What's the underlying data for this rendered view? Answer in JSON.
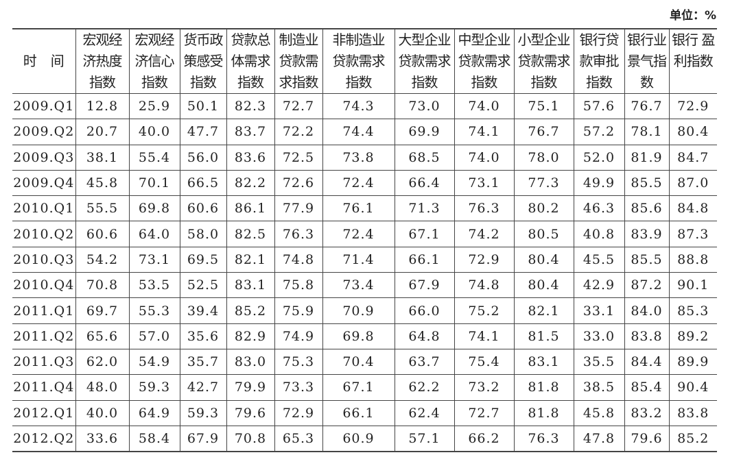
{
  "unit_label": "单位：%",
  "table": {
    "headers": [
      "时　间",
      "宏观经\n济热度\n指数",
      "宏观经\n济信心\n指数",
      "货币政\n策感受\n指数",
      "贷款总\n体需求\n指数",
      "制造业\n贷款需\n求指数",
      "非制造业\n贷款需求\n指数",
      "大型企业\n贷款需求\n指数",
      "中型企业\n贷款需求\n指数",
      "小型企业\n贷款需求\n指数",
      "银行贷\n款审批\n指数",
      "银行业\n景气指\n数",
      "银行 盈\n利指数"
    ],
    "rows": [
      [
        "2009.Q1",
        "12.8",
        "25.9",
        "50.1",
        "82.3",
        "72.7",
        "74.3",
        "73.0",
        "74.0",
        "75.1",
        "57.6",
        "76.7",
        "72.9"
      ],
      [
        "2009.Q2",
        "20.7",
        "40.0",
        "47.7",
        "83.7",
        "72.2",
        "74.4",
        "69.9",
        "74.1",
        "76.7",
        "57.2",
        "78.1",
        "80.4"
      ],
      [
        "2009.Q3",
        "38.1",
        "55.4",
        "56.0",
        "83.6",
        "72.5",
        "73.8",
        "68.5",
        "74.0",
        "78.0",
        "52.0",
        "81.9",
        "84.7"
      ],
      [
        "2009.Q4",
        "45.8",
        "70.1",
        "66.5",
        "82.2",
        "72.6",
        "72.4",
        "66.4",
        "73.1",
        "77.3",
        "49.9",
        "85.5",
        "87.0"
      ],
      [
        "2010.Q1",
        "55.5",
        "69.8",
        "60.6",
        "86.1",
        "77.9",
        "76.1",
        "71.3",
        "76.3",
        "80.2",
        "46.3",
        "85.6",
        "84.8"
      ],
      [
        "2010.Q2",
        "60.6",
        "64.0",
        "58.0",
        "82.5",
        "76.3",
        "72.4",
        "67.1",
        "74.2",
        "80.5",
        "40.8",
        "83.9",
        "87.3"
      ],
      [
        "2010.Q3",
        "54.2",
        "73.1",
        "69.5",
        "82.1",
        "74.8",
        "71.4",
        "66.1",
        "72.9",
        "80.4",
        "45.5",
        "85.5",
        "88.8"
      ],
      [
        "2010.Q4",
        "70.8",
        "53.5",
        "52.5",
        "83.1",
        "75.8",
        "73.4",
        "67.9",
        "74.8",
        "80.4",
        "42.9",
        "87.2",
        "90.1"
      ],
      [
        "2011.Q1",
        "69.7",
        "55.3",
        "39.4",
        "85.2",
        "75.9",
        "70.9",
        "66.0",
        "75.2",
        "82.1",
        "33.1",
        "84.0",
        "85.3"
      ],
      [
        "2011.Q2",
        "65.6",
        "57.0",
        "35.6",
        "82.9",
        "74.9",
        "69.8",
        "64.8",
        "74.1",
        "81.5",
        "33.0",
        "83.8",
        "89.2"
      ],
      [
        "2011.Q3",
        "62.0",
        "54.9",
        "35.7",
        "83.0",
        "75.3",
        "70.4",
        "63.7",
        "75.4",
        "83.1",
        "35.5",
        "84.4",
        "89.9"
      ],
      [
        "2011.Q4",
        "48.0",
        "59.3",
        "42.7",
        "79.9",
        "73.3",
        "67.1",
        "62.2",
        "73.2",
        "81.8",
        "38.5",
        "85.4",
        "90.4"
      ],
      [
        "2012.Q1",
        "40.0",
        "64.9",
        "59.3",
        "79.6",
        "72.9",
        "66.1",
        "62.4",
        "72.7",
        "81.8",
        "45.8",
        "83.2",
        "83.8"
      ],
      [
        "2012.Q2",
        "33.6",
        "58.4",
        "67.9",
        "70.8",
        "65.3",
        "60.9",
        "57.1",
        "66.2",
        "76.3",
        "47.8",
        "79.6",
        "85.2"
      ]
    ]
  }
}
